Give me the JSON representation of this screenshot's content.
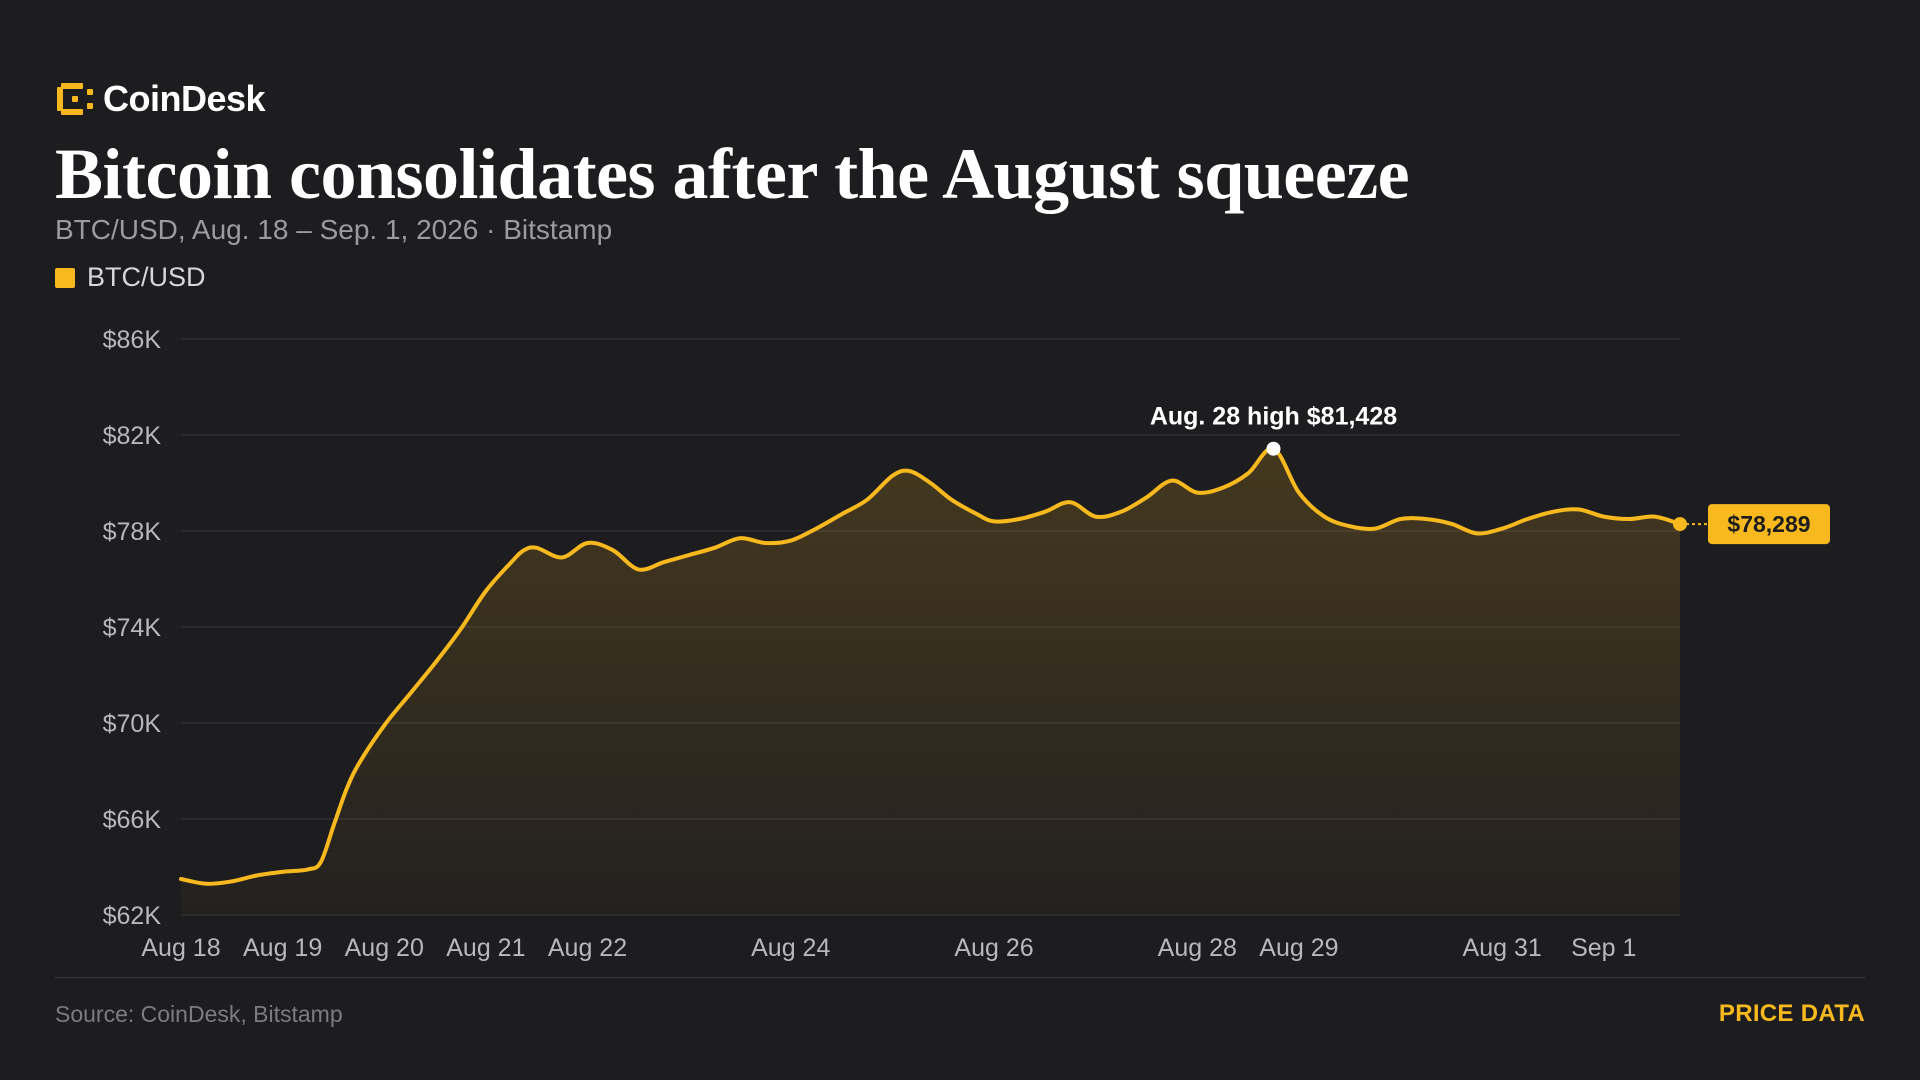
{
  "brand": {
    "name": "CoinDesk",
    "logo_icon": "coindesk-logo-icon",
    "accent": "#f7b91e"
  },
  "title": "Bitcoin consolidates after the August squeeze",
  "subtitle": "BTC/USD, Aug. 18 – Sep. 1, 2026 · Bitstamp",
  "footer": {
    "source": "Source: CoinDesk, Bitstamp",
    "tag": "PRICE DATA"
  },
  "colors": {
    "background": "#1d1c1f",
    "line": "#f7b91e",
    "grid": "#2f2e33",
    "axis_text": "#b9b7bc"
  },
  "chart_data": {
    "type": "line",
    "title": "Bitcoin consolidates after the August squeeze",
    "subtitle": "BTC/USD, Aug. 18 – Sep. 1, 2026 · Bitstamp",
    "xlabel": "",
    "ylabel": "",
    "x_range": [
      "2026-08-18",
      "2026-09-01"
    ],
    "ylim": [
      62000,
      86000
    ],
    "grid": true,
    "legend_position": "top-left",
    "yticks": [
      86000,
      82000,
      78000,
      74000,
      70000,
      66000,
      62000
    ],
    "ytick_labels": [
      "$86K",
      "$82K",
      "$78K",
      "$74K",
      "$70K",
      "$66K",
      "$62K"
    ],
    "xticks": [
      {
        "date": "2026-08-18",
        "label": "Aug 18"
      },
      {
        "date": "2026-08-19",
        "label": "Aug 19"
      },
      {
        "date": "2026-08-20",
        "label": "Aug 20"
      },
      {
        "date": "2026-08-21",
        "label": "Aug 21"
      },
      {
        "date": "2026-08-22",
        "label": "Aug 22"
      },
      {
        "date": "2026-08-24",
        "label": "Aug 24"
      },
      {
        "date": "2026-08-26",
        "label": "Aug 26"
      },
      {
        "date": "2026-08-28",
        "label": "Aug 28"
      },
      {
        "date": "2026-08-29",
        "label": "Aug 29"
      },
      {
        "date": "2026-08-31",
        "label": "Aug 31"
      },
      {
        "date": "2026-09-01",
        "label": "Sep 1"
      }
    ],
    "series": [
      {
        "name": "BTC/USD",
        "color": "#f7b91e",
        "points": [
          [
            "2026-08-18T00:00",
            63500
          ],
          [
            "2026-08-18T06:00",
            63300
          ],
          [
            "2026-08-18T12:00",
            63400
          ],
          [
            "2026-08-18T18:00",
            63650
          ],
          [
            "2026-08-19T00:00",
            63800
          ],
          [
            "2026-08-19T06:00",
            63900
          ],
          [
            "2026-08-19T09:00",
            64200
          ],
          [
            "2026-08-19T12:00",
            65700
          ],
          [
            "2026-08-19T15:00",
            67200
          ],
          [
            "2026-08-19T18:00",
            68300
          ],
          [
            "2026-08-20T00:00",
            69900
          ],
          [
            "2026-08-20T06:00",
            71200
          ],
          [
            "2026-08-20T12:00",
            72500
          ],
          [
            "2026-08-20T18:00",
            73900
          ],
          [
            "2026-08-21T00:00",
            75500
          ],
          [
            "2026-08-21T06:00",
            76700
          ],
          [
            "2026-08-21T09:00",
            77200
          ],
          [
            "2026-08-21T12:00",
            77300
          ],
          [
            "2026-08-21T18:00",
            76900
          ],
          [
            "2026-08-22T00:00",
            77500
          ],
          [
            "2026-08-22T06:00",
            77200
          ],
          [
            "2026-08-22T12:00",
            76400
          ],
          [
            "2026-08-22T18:00",
            76700
          ],
          [
            "2026-08-23T00:00",
            77000
          ],
          [
            "2026-08-23T06:00",
            77300
          ],
          [
            "2026-08-23T12:00",
            77700
          ],
          [
            "2026-08-23T18:00",
            77500
          ],
          [
            "2026-08-24T00:00",
            77600
          ],
          [
            "2026-08-24T06:00",
            78100
          ],
          [
            "2026-08-24T12:00",
            78700
          ],
          [
            "2026-08-24T18:00",
            79300
          ],
          [
            "2026-08-25T00:00",
            80300
          ],
          [
            "2026-08-25T04:00",
            80500
          ],
          [
            "2026-08-25T09:00",
            80000
          ],
          [
            "2026-08-25T14:00",
            79300
          ],
          [
            "2026-08-25T20:00",
            78700
          ],
          [
            "2026-08-26T00:00",
            78400
          ],
          [
            "2026-08-26T06:00",
            78500
          ],
          [
            "2026-08-26T12:00",
            78800
          ],
          [
            "2026-08-26T18:00",
            79200
          ],
          [
            "2026-08-27T00:00",
            78600
          ],
          [
            "2026-08-27T06:00",
            78800
          ],
          [
            "2026-08-27T12:00",
            79400
          ],
          [
            "2026-08-27T18:00",
            80100
          ],
          [
            "2026-08-28T00:00",
            79600
          ],
          [
            "2026-08-28T06:00",
            79800
          ],
          [
            "2026-08-28T12:00",
            80400
          ],
          [
            "2026-08-28T18:00",
            81428
          ],
          [
            "2026-08-29T00:00",
            79600
          ],
          [
            "2026-08-29T06:00",
            78600
          ],
          [
            "2026-08-29T12:00",
            78200
          ],
          [
            "2026-08-29T18:00",
            78100
          ],
          [
            "2026-08-30T00:00",
            78500
          ],
          [
            "2026-08-30T06:00",
            78500
          ],
          [
            "2026-08-30T12:00",
            78300
          ],
          [
            "2026-08-30T18:00",
            77900
          ],
          [
            "2026-08-31T00:00",
            78100
          ],
          [
            "2026-08-31T06:00",
            78500
          ],
          [
            "2026-08-31T12:00",
            78800
          ],
          [
            "2026-08-31T18:00",
            78900
          ],
          [
            "2026-09-01T00:00",
            78600
          ],
          [
            "2026-09-01T06:00",
            78500
          ],
          [
            "2026-09-01T12:00",
            78600
          ],
          [
            "2026-09-01T18:00",
            78289
          ]
        ]
      }
    ],
    "annotations": [
      {
        "date": "2026-08-28T18:00",
        "value": 81428,
        "label": "Aug. 28 high $81,428",
        "type": "peak"
      },
      {
        "date": "2026-09-01T18:00",
        "value": 78289,
        "label": "$78,289",
        "type": "last-price"
      }
    ]
  }
}
